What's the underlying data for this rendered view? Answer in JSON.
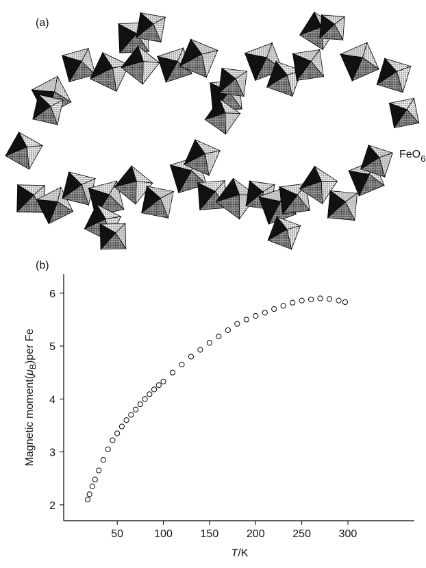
{
  "panel_a": {
    "label": "(a)",
    "annotation": "FeO",
    "annotation_subscript": "6"
  },
  "chart_data": {
    "type": "scatter",
    "panel_label": "(b)",
    "y_label": [
      "Magnetic moment(",
      "μ",
      "B",
      ")per Fe"
    ],
    "x_label": [
      "T",
      "/K"
    ],
    "x": [
      18,
      20,
      23,
      26,
      30,
      35,
      40,
      45,
      50,
      55,
      60,
      65,
      70,
      75,
      80,
      85,
      90,
      95,
      100,
      110,
      120,
      130,
      140,
      150,
      160,
      170,
      180,
      190,
      200,
      210,
      220,
      230,
      240,
      250,
      260,
      270,
      280,
      290,
      297
    ],
    "series": [
      {
        "name": "Magnetic moment",
        "color": "#000000",
        "values": [
          2.1,
          2.2,
          2.35,
          2.48,
          2.65,
          2.85,
          3.05,
          3.22,
          3.35,
          3.48,
          3.6,
          3.7,
          3.8,
          3.9,
          4.0,
          4.09,
          4.18,
          4.26,
          4.33,
          4.5,
          4.65,
          4.8,
          4.93,
          5.06,
          5.18,
          5.3,
          5.42,
          5.5,
          5.57,
          5.63,
          5.7,
          5.76,
          5.82,
          5.86,
          5.88,
          5.9,
          5.89,
          5.86,
          5.83
        ]
      }
    ],
    "xlim": [
      -8,
      372
    ],
    "ylim": [
      1.7,
      6.36
    ],
    "xticks": [
      50,
      100,
      150,
      200,
      250,
      300
    ],
    "yticks": [
      2,
      3,
      4,
      5,
      6
    ]
  }
}
